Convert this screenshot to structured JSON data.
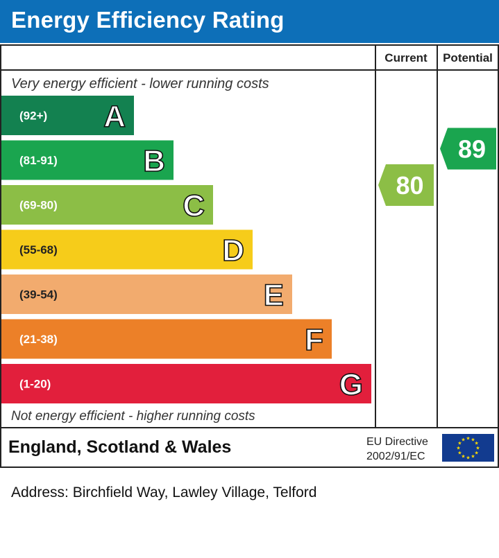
{
  "header": {
    "title": "Energy Efficiency Rating"
  },
  "chart_data": {
    "type": "bar",
    "columns": {
      "current": "Current",
      "potential": "Potential"
    },
    "top_note": "Very energy efficient - lower running costs",
    "bottom_note": "Not energy efficient - higher running costs",
    "bands": [
      {
        "letter": "A",
        "range": "(92+)",
        "color": "#138150"
      },
      {
        "letter": "B",
        "range": "(81-91)",
        "color": "#1aa54f"
      },
      {
        "letter": "C",
        "range": "(69-80)",
        "color": "#8cbe46"
      },
      {
        "letter": "D",
        "range": "(55-68)",
        "color": "#f6cc1a"
      },
      {
        "letter": "E",
        "range": "(39-54)",
        "color": "#f2ab6e"
      },
      {
        "letter": "F",
        "range": "(21-38)",
        "color": "#ec8028"
      },
      {
        "letter": "G",
        "range": "(1-20)",
        "color": "#e21f3c"
      }
    ],
    "current": {
      "value": 80,
      "band": "C",
      "color": "#8cbe46"
    },
    "potential": {
      "value": 89,
      "band": "B",
      "color": "#1aa54f"
    }
  },
  "footer": {
    "region": "England, Scotland & Wales",
    "directive_line1": "EU Directive",
    "directive_line2": "2002/91/EC",
    "flag_color": "#123b8f",
    "star_color": "#ffdd00"
  },
  "address": "Address: Birchfield Way, Lawley Village, Telford"
}
